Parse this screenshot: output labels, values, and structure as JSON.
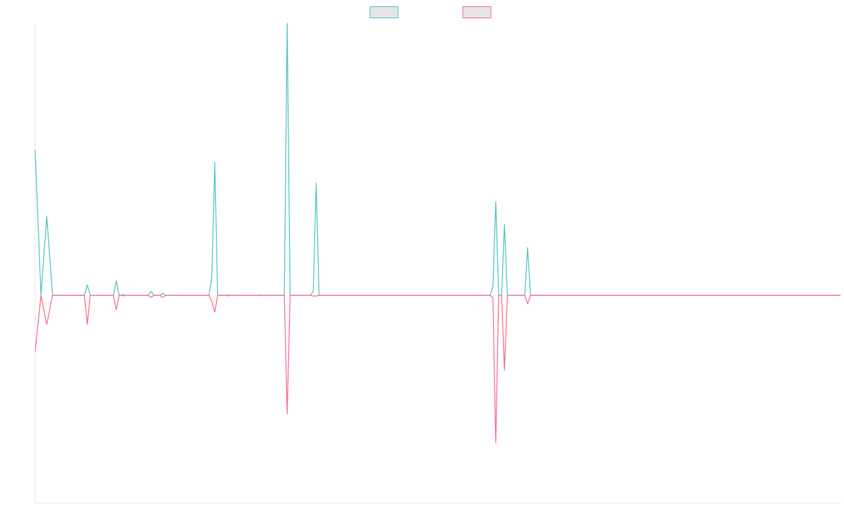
{
  "chart_data": {
    "type": "line",
    "title": "",
    "xlabel": "",
    "ylabel": "",
    "grid": false,
    "legend_position": "top-center",
    "x_range": [
      0,
      139
    ],
    "y_range": [
      -1.0,
      1.3
    ],
    "baseline": 0,
    "series": [
      {
        "color": "#4bc0c0",
        "fill": "#e6e6e6",
        "points": [
          [
            0,
            0.7
          ],
          [
            1,
            0.0
          ],
          [
            2,
            0.38
          ],
          [
            3,
            0.0
          ],
          [
            8.5,
            0.0
          ],
          [
            9,
            0.05
          ],
          [
            9.5,
            0.0
          ],
          [
            13.5,
            0.0
          ],
          [
            14,
            0.07
          ],
          [
            14.5,
            0.0
          ],
          [
            15,
            0.0
          ],
          [
            15.2,
            0.005
          ],
          [
            15.4,
            0.0
          ],
          [
            19.5,
            0.0
          ],
          [
            20,
            0.02
          ],
          [
            20.5,
            0.0
          ],
          [
            21.5,
            0.0
          ],
          [
            22,
            0.01
          ],
          [
            22.5,
            0.0
          ],
          [
            30,
            0.0
          ],
          [
            30.5,
            0.09
          ],
          [
            31,
            0.64
          ],
          [
            31.5,
            0.0
          ],
          [
            33,
            0.0
          ],
          [
            33.2,
            0.003
          ],
          [
            33.4,
            0.0
          ],
          [
            38.5,
            0.0
          ],
          [
            38.7,
            0.002
          ],
          [
            38.9,
            0.0
          ],
          [
            43,
            0.0
          ],
          [
            43.5,
            1.31
          ],
          [
            44,
            0.0
          ],
          [
            47.5,
            0.0
          ],
          [
            48,
            0.02
          ],
          [
            48.5,
            0.54
          ],
          [
            49,
            0.0
          ],
          [
            78.5,
            0.0
          ],
          [
            79,
            0.04
          ],
          [
            79.5,
            0.45
          ],
          [
            80,
            0.0
          ],
          [
            80.5,
            0.0
          ],
          [
            81,
            0.34
          ],
          [
            81.5,
            0.0
          ],
          [
            84.5,
            0.0
          ],
          [
            85,
            0.23
          ],
          [
            85.5,
            0.0
          ],
          [
            139,
            0.0
          ]
        ]
      },
      {
        "color": "#ff6384",
        "fill": "#e6e6e6",
        "points": [
          [
            0,
            -0.27
          ],
          [
            1,
            0.0
          ],
          [
            2,
            -0.14
          ],
          [
            3,
            0.0
          ],
          [
            8.5,
            0.0
          ],
          [
            9,
            -0.14
          ],
          [
            9.5,
            0.0
          ],
          [
            13.5,
            0.0
          ],
          [
            14,
            -0.07
          ],
          [
            14.5,
            0.0
          ],
          [
            15,
            0.0
          ],
          [
            15.2,
            -0.003
          ],
          [
            15.4,
            0.0
          ],
          [
            19.5,
            0.0
          ],
          [
            20,
            -0.01
          ],
          [
            20.5,
            0.0
          ],
          [
            21.5,
            0.0
          ],
          [
            22,
            -0.01
          ],
          [
            22.5,
            0.0
          ],
          [
            30,
            0.0
          ],
          [
            30.5,
            -0.03
          ],
          [
            31,
            -0.08
          ],
          [
            31.5,
            0.0
          ],
          [
            33,
            0.0
          ],
          [
            33.2,
            -0.003
          ],
          [
            33.4,
            0.0
          ],
          [
            38.5,
            0.0
          ],
          [
            38.7,
            -0.002
          ],
          [
            38.9,
            0.0
          ],
          [
            43,
            0.0
          ],
          [
            43.5,
            -0.57
          ],
          [
            44,
            0.0
          ],
          [
            47.5,
            0.0
          ],
          [
            48,
            -0.003
          ],
          [
            48.5,
            -0.003
          ],
          [
            49,
            0.0
          ],
          [
            78.5,
            0.0
          ],
          [
            79,
            -0.01
          ],
          [
            79.5,
            -0.71
          ],
          [
            80,
            0.0
          ],
          [
            80.5,
            0.0
          ],
          [
            81,
            -0.36
          ],
          [
            81.5,
            0.0
          ],
          [
            84.5,
            0.0
          ],
          [
            85,
            -0.04
          ],
          [
            85.5,
            0.0
          ],
          [
            139,
            0.0
          ]
        ]
      }
    ]
  }
}
